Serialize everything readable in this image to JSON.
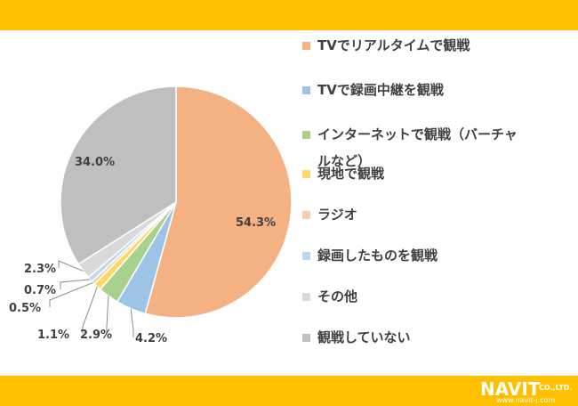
{
  "chart_data": {
    "type": "pie",
    "categories": [
      "TVでリアルタイムで観戦",
      "TVで録画中継を観戦",
      "インターネットで観戦（バーチャルなど）",
      "現地で観戦",
      "ラジオ",
      "録画したものを観戦",
      "その他",
      "観戦していない"
    ],
    "values": [
      54.3,
      4.2,
      2.9,
      1.1,
      0.5,
      0.7,
      2.3,
      34.0
    ],
    "value_labels": [
      "54.3%",
      "4.2%",
      "2.9%",
      "1.1%",
      "0.5%",
      "0.7%",
      "2.3%",
      "34.0%"
    ],
    "colors": [
      "#F4B183",
      "#9DC3E6",
      "#A9D18E",
      "#FFD966",
      "#F8CBAD",
      "#BDD7EE",
      "#D9D9D9",
      "#BFBFBF"
    ],
    "legend_placement": "right",
    "start_angle": "12 o'clock",
    "direction": "clockwise"
  },
  "legend": {
    "items": [
      "TVでリアルタイムで観戦",
      "TVで録画中継を観戦",
      "インターネットで観戦（バーチャ\nルなど）",
      "現地で観戦",
      "ラジオ",
      "録画したものを観戦",
      "その他",
      "観戦していない"
    ]
  },
  "logo": {
    "word": "NAVIT",
    "suffix": "CO.,LTD.",
    "url": "www.navit-j.com"
  },
  "colors": {
    "band": "#FFC000",
    "text": "#404040"
  }
}
